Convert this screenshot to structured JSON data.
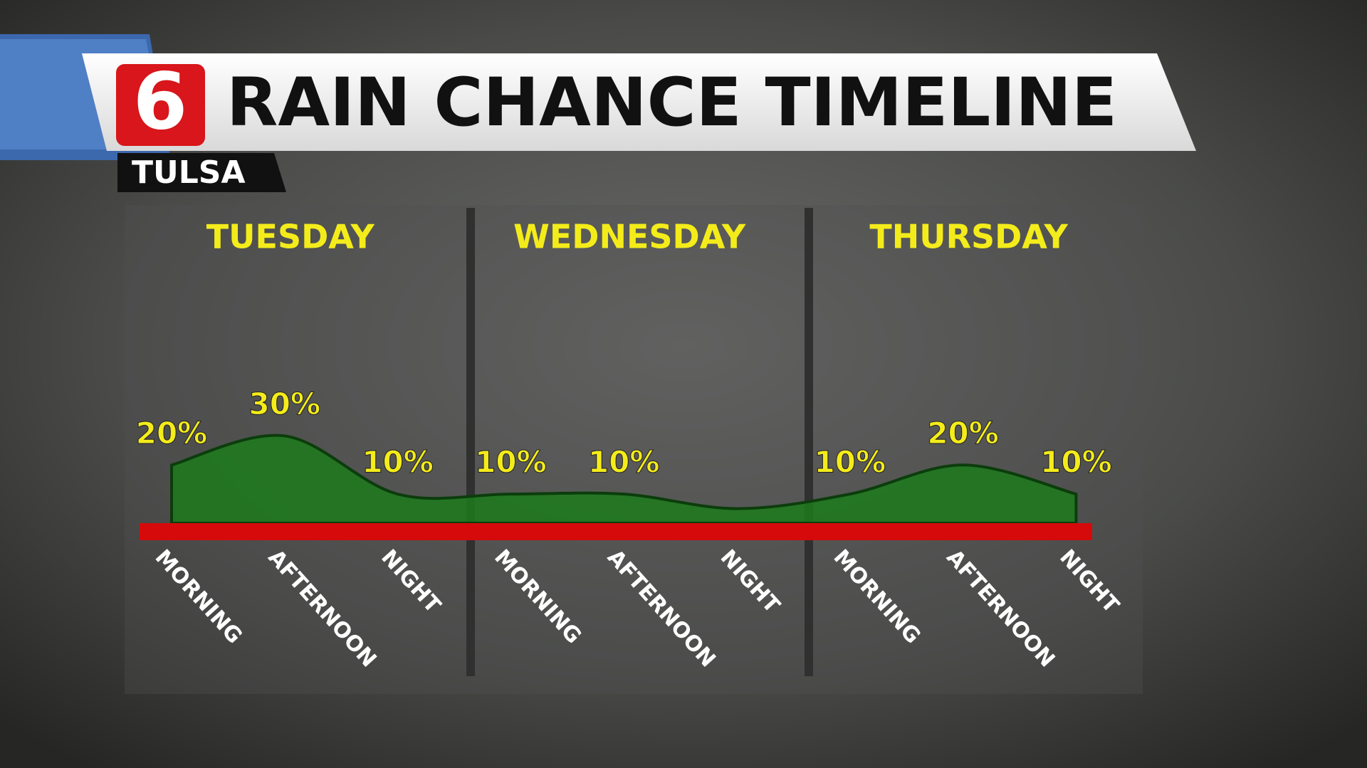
{
  "chart_data": {
    "type": "area",
    "title": "RAIN CHANCE TIMELINE",
    "logo": "6",
    "location": "TULSA",
    "days": [
      "TUESDAY",
      "WEDNESDAY",
      "THURSDAY"
    ],
    "categories": [
      "MORNING",
      "AFTERNOON",
      "NIGHT",
      "MORNING",
      "AFTERNOON",
      "NIGHT",
      "MORNING",
      "AFTERNOON",
      "NIGHT"
    ],
    "values": [
      20,
      30,
      10,
      10,
      10,
      5,
      10,
      20,
      10
    ],
    "value_labels": [
      "20%",
      "30%",
      "10%",
      "10%",
      "10%",
      null,
      "10%",
      "20%",
      "10%"
    ],
    "ylim": [
      0,
      35
    ],
    "color": "#1c7a1c",
    "baseline_color": "#d60a0a"
  }
}
